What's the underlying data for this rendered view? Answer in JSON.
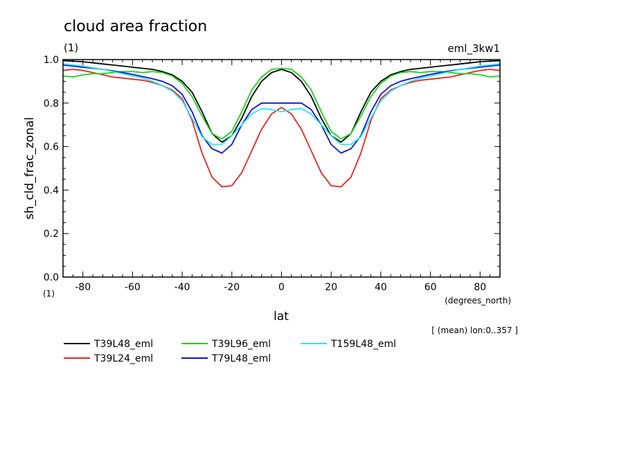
{
  "chart_data": {
    "type": "line",
    "title": "cloud area fraction",
    "units_label": "(1)",
    "experiment": "eml_3kw1",
    "ylabel": "sh_cld_frac_zonal",
    "yunit": "(1)",
    "xlabel": "lat",
    "xunit": "(degrees_north)",
    "note": "[ (mean) lon:0..357 ]",
    "xlim": [
      -88,
      88
    ],
    "ylim": [
      0,
      1
    ],
    "xticks": [
      "-80",
      "-60",
      "-40",
      "-20",
      "0",
      "20",
      "40",
      "60",
      "80"
    ],
    "yticks": [
      "0.0",
      "0.2",
      "0.4",
      "0.6",
      "0.8",
      "1.0"
    ],
    "grid": false,
    "legend_position": "bottom",
    "x": [
      -88,
      -84,
      -80,
      -76,
      -72,
      -68,
      -64,
      -60,
      -56,
      -52,
      -48,
      -44,
      -40,
      -36,
      -32,
      -28,
      -24,
      -20,
      -16,
      -12,
      -8,
      -4,
      0,
      4,
      8,
      12,
      16,
      20,
      24,
      28,
      32,
      36,
      40,
      44,
      48,
      52,
      56,
      60,
      64,
      68,
      72,
      76,
      80,
      84,
      88
    ],
    "series": [
      {
        "name": "T39L48_eml",
        "color": "#000000",
        "values": [
          0.995,
          0.993,
          0.99,
          0.985,
          0.98,
          0.975,
          0.97,
          0.965,
          0.96,
          0.955,
          0.945,
          0.93,
          0.9,
          0.85,
          0.76,
          0.66,
          0.62,
          0.65,
          0.73,
          0.83,
          0.9,
          0.94,
          0.955,
          0.94,
          0.9,
          0.83,
          0.73,
          0.65,
          0.62,
          0.66,
          0.76,
          0.85,
          0.9,
          0.93,
          0.945,
          0.955,
          0.96,
          0.965,
          0.97,
          0.975,
          0.98,
          0.985,
          0.99,
          0.993,
          0.995
        ]
      },
      {
        "name": "T39L24_eml",
        "color": "#e8241c",
        "values": [
          0.95,
          0.955,
          0.95,
          0.94,
          0.93,
          0.92,
          0.915,
          0.91,
          0.905,
          0.895,
          0.88,
          0.86,
          0.82,
          0.72,
          0.57,
          0.46,
          0.415,
          0.42,
          0.48,
          0.58,
          0.68,
          0.75,
          0.78,
          0.75,
          0.68,
          0.58,
          0.48,
          0.42,
          0.415,
          0.46,
          0.57,
          0.72,
          0.82,
          0.86,
          0.88,
          0.895,
          0.905,
          0.91,
          0.915,
          0.92,
          0.93,
          0.94,
          0.95,
          0.955,
          0.95
        ]
      },
      {
        "name": "T39L96_eml",
        "color": "#1ed21e",
        "values": [
          0.925,
          0.92,
          0.93,
          0.935,
          0.935,
          0.94,
          0.945,
          0.945,
          0.94,
          0.945,
          0.94,
          0.925,
          0.89,
          0.83,
          0.74,
          0.66,
          0.635,
          0.67,
          0.76,
          0.86,
          0.92,
          0.955,
          0.96,
          0.955,
          0.92,
          0.86,
          0.76,
          0.67,
          0.635,
          0.66,
          0.74,
          0.83,
          0.89,
          0.925,
          0.94,
          0.945,
          0.94,
          0.945,
          0.945,
          0.94,
          0.935,
          0.935,
          0.93,
          0.92,
          0.925
        ]
      },
      {
        "name": "T79L48_eml",
        "color": "#0a14d2",
        "values": [
          0.975,
          0.97,
          0.965,
          0.96,
          0.955,
          0.948,
          0.94,
          0.932,
          0.922,
          0.912,
          0.9,
          0.88,
          0.84,
          0.76,
          0.65,
          0.59,
          0.57,
          0.61,
          0.7,
          0.77,
          0.8,
          0.8,
          0.8,
          0.8,
          0.8,
          0.77,
          0.7,
          0.61,
          0.57,
          0.59,
          0.65,
          0.76,
          0.84,
          0.88,
          0.9,
          0.912,
          0.922,
          0.932,
          0.94,
          0.948,
          0.955,
          0.96,
          0.965,
          0.97,
          0.975
        ]
      },
      {
        "name": "T159L48_eml",
        "color": "#28e6f0",
        "values": [
          0.98,
          0.975,
          0.97,
          0.962,
          0.955,
          0.945,
          0.935,
          0.925,
          0.915,
          0.9,
          0.88,
          0.855,
          0.81,
          0.73,
          0.645,
          0.61,
          0.61,
          0.65,
          0.7,
          0.75,
          0.775,
          0.77,
          0.76,
          0.77,
          0.775,
          0.75,
          0.7,
          0.65,
          0.61,
          0.61,
          0.645,
          0.73,
          0.81,
          0.855,
          0.88,
          0.9,
          0.915,
          0.925,
          0.935,
          0.945,
          0.955,
          0.962,
          0.97,
          0.975,
          0.98
        ]
      }
    ]
  }
}
